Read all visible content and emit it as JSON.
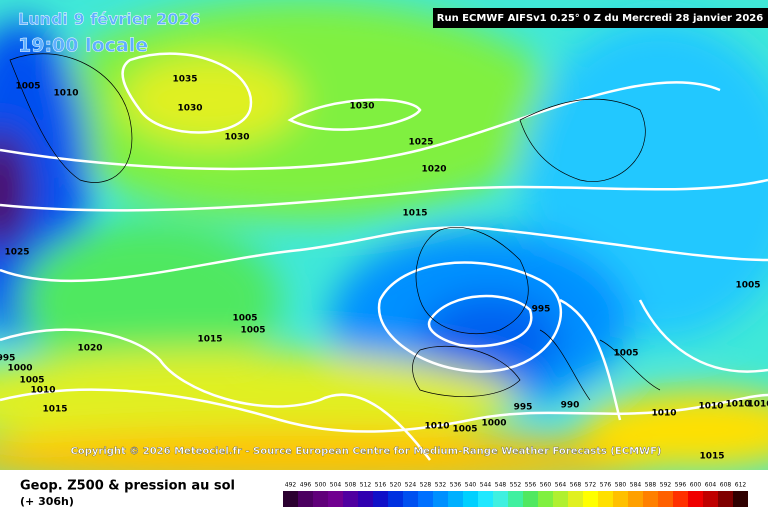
{
  "header": {
    "date": "Lundi 9 février 2026",
    "time": "19:00 locale",
    "run": "Run ECMWF AIFSv1 0.25° 0 Z du Mercredi 28 janvier 2026",
    "copyright": "Copyright © 2026 Meteociel.fr - Source European Centre for Medium-Range Weather Forecasts (ECMWF)"
  },
  "isobar_labels": [
    "1005",
    "1010",
    "1035",
    "1030",
    "1030",
    "1030",
    "1025",
    "1020",
    "1015",
    "1025",
    "1005",
    "1005",
    "1015",
    "1020",
    "995",
    "1000",
    "1005",
    "1010",
    "1015",
    "995",
    "1005",
    "1005",
    "995",
    "990",
    "1010",
    "1010",
    "1010",
    "1010",
    "1010",
    "1005",
    "1000",
    "1015"
  ],
  "footer": {
    "title": "Geop. Z500 & pression au sol",
    "lead": "(+ 306h)"
  },
  "color_scale": {
    "labels": [
      492,
      496,
      500,
      504,
      508,
      512,
      516,
      520,
      524,
      528,
      532,
      536,
      540,
      544,
      548,
      552,
      556,
      560,
      564,
      568,
      572,
      576,
      580,
      584,
      588,
      592,
      596,
      600,
      604,
      608,
      612
    ],
    "colors": [
      "#2b0030",
      "#4b0060",
      "#60007a",
      "#700090",
      "#5000a0",
      "#3000b0",
      "#1010c8",
      "#0030e0",
      "#0050f0",
      "#0070ff",
      "#0090ff",
      "#00b0ff",
      "#00d0ff",
      "#20e8ff",
      "#40f0e0",
      "#40f0a0",
      "#50e860",
      "#80f040",
      "#b0f030",
      "#e0f020",
      "#ffff00",
      "#ffe000",
      "#ffc000",
      "#ffa000",
      "#ff8000",
      "#ff6000",
      "#ff3000",
      "#f00000",
      "#c00000",
      "#800000",
      "#300000"
    ]
  }
}
